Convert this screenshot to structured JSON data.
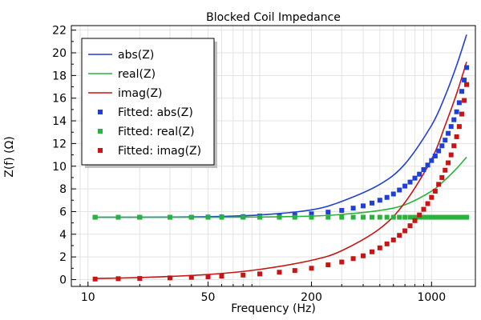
{
  "chart_data": {
    "type": "line",
    "title": "Blocked Coil Impedance",
    "xlabel": "Frequency (Hz)",
    "ylabel": "Z(f) (Ω)",
    "xscale": "log",
    "xlim": [
      8,
      1800
    ],
    "ylim": [
      -0.6,
      22.4
    ],
    "xticks": [
      10,
      50,
      200,
      1000
    ],
    "xtick_labels": [
      "10",
      "50",
      "200",
      "1000"
    ],
    "yticks": [
      0,
      2,
      4,
      6,
      8,
      10,
      12,
      14,
      16,
      18,
      20,
      22
    ],
    "ytick_labels": [
      "0",
      "2",
      "4",
      "6",
      "8",
      "10",
      "12",
      "14",
      "16",
      "18",
      "20",
      "22"
    ],
    "grid": true,
    "legend_position": "top-left",
    "series": [
      {
        "name": "abs(Z)",
        "style": "line",
        "color": "#1f3fd8",
        "x": [
          11,
          20,
          50,
          100,
          200,
          300,
          500,
          700,
          1000,
          1200,
          1400,
          1600
        ],
        "y": [
          5.5,
          5.5,
          5.55,
          5.7,
          6.15,
          6.9,
          8.4,
          10.2,
          13.6,
          16.2,
          18.9,
          21.6
        ]
      },
      {
        "name": "real(Z)",
        "style": "line",
        "color": "#28b43c",
        "x": [
          11,
          20,
          50,
          100,
          200,
          300,
          500,
          700,
          1000,
          1200,
          1400,
          1600
        ],
        "y": [
          5.5,
          5.5,
          5.5,
          5.52,
          5.6,
          5.75,
          6.1,
          6.6,
          7.8,
          8.8,
          9.8,
          10.8
        ]
      },
      {
        "name": "imag(Z)",
        "style": "line",
        "color": "#c81414",
        "x": [
          11,
          20,
          50,
          100,
          200,
          300,
          500,
          700,
          1000,
          1200,
          1400,
          1600
        ],
        "y": [
          0.1,
          0.18,
          0.45,
          0.9,
          1.7,
          2.55,
          4.5,
          6.8,
          10.6,
          13.6,
          16.4,
          19.2
        ]
      },
      {
        "name": "Fitted: abs(Z)",
        "style": "marker",
        "color": "#1f3fd8",
        "x": [
          11,
          15,
          20,
          30,
          40,
          50,
          60,
          80,
          100,
          130,
          160,
          200,
          250,
          300,
          350,
          400,
          450,
          500,
          550,
          600,
          650,
          700,
          750,
          800,
          850,
          900,
          950,
          1000,
          1050,
          1100,
          1150,
          1200,
          1250,
          1300,
          1350,
          1400,
          1450,
          1500,
          1550,
          1600
        ],
        "y": [
          5.5,
          5.5,
          5.5,
          5.5,
          5.5,
          5.52,
          5.53,
          5.55,
          5.6,
          5.65,
          5.7,
          5.8,
          5.95,
          6.1,
          6.3,
          6.5,
          6.75,
          7.0,
          7.25,
          7.55,
          7.9,
          8.25,
          8.6,
          8.95,
          9.3,
          9.7,
          10.1,
          10.5,
          10.9,
          11.35,
          11.8,
          12.3,
          12.9,
          13.5,
          14.1,
          14.8,
          15.6,
          16.6,
          17.6,
          18.7
        ]
      },
      {
        "name": "Fitted: real(Z)",
        "style": "marker",
        "color": "#28b43c",
        "x": [
          11,
          15,
          20,
          30,
          40,
          50,
          60,
          80,
          100,
          130,
          160,
          200,
          250,
          300,
          350,
          400,
          450,
          500,
          550,
          600,
          650,
          700,
          750,
          800,
          850,
          900,
          950,
          1000,
          1050,
          1100,
          1150,
          1200,
          1250,
          1300,
          1350,
          1400,
          1450,
          1500,
          1550,
          1600
        ],
        "y": [
          5.5,
          5.5,
          5.5,
          5.5,
          5.5,
          5.5,
          5.5,
          5.5,
          5.5,
          5.5,
          5.5,
          5.5,
          5.5,
          5.5,
          5.5,
          5.5,
          5.5,
          5.5,
          5.5,
          5.5,
          5.5,
          5.5,
          5.5,
          5.5,
          5.5,
          5.5,
          5.5,
          5.5,
          5.5,
          5.5,
          5.5,
          5.5,
          5.5,
          5.5,
          5.5,
          5.5,
          5.5,
          5.5,
          5.5,
          5.5
        ]
      },
      {
        "name": "Fitted: imag(Z)",
        "style": "marker",
        "color": "#c81414",
        "x": [
          11,
          15,
          20,
          30,
          40,
          50,
          60,
          80,
          100,
          130,
          160,
          200,
          250,
          300,
          350,
          400,
          450,
          500,
          550,
          600,
          650,
          700,
          750,
          800,
          850,
          900,
          950,
          1000,
          1050,
          1100,
          1150,
          1200,
          1250,
          1300,
          1350,
          1400,
          1450,
          1500,
          1550,
          1600
        ],
        "y": [
          0.05,
          0.08,
          0.1,
          0.15,
          0.2,
          0.25,
          0.3,
          0.4,
          0.5,
          0.65,
          0.8,
          1.0,
          1.3,
          1.55,
          1.85,
          2.1,
          2.45,
          2.8,
          3.15,
          3.5,
          3.9,
          4.3,
          4.75,
          5.2,
          5.7,
          6.2,
          6.7,
          7.25,
          7.8,
          8.4,
          9.0,
          9.65,
          10.3,
          11.0,
          11.8,
          12.6,
          13.5,
          14.6,
          15.8,
          17.2
        ]
      }
    ]
  }
}
